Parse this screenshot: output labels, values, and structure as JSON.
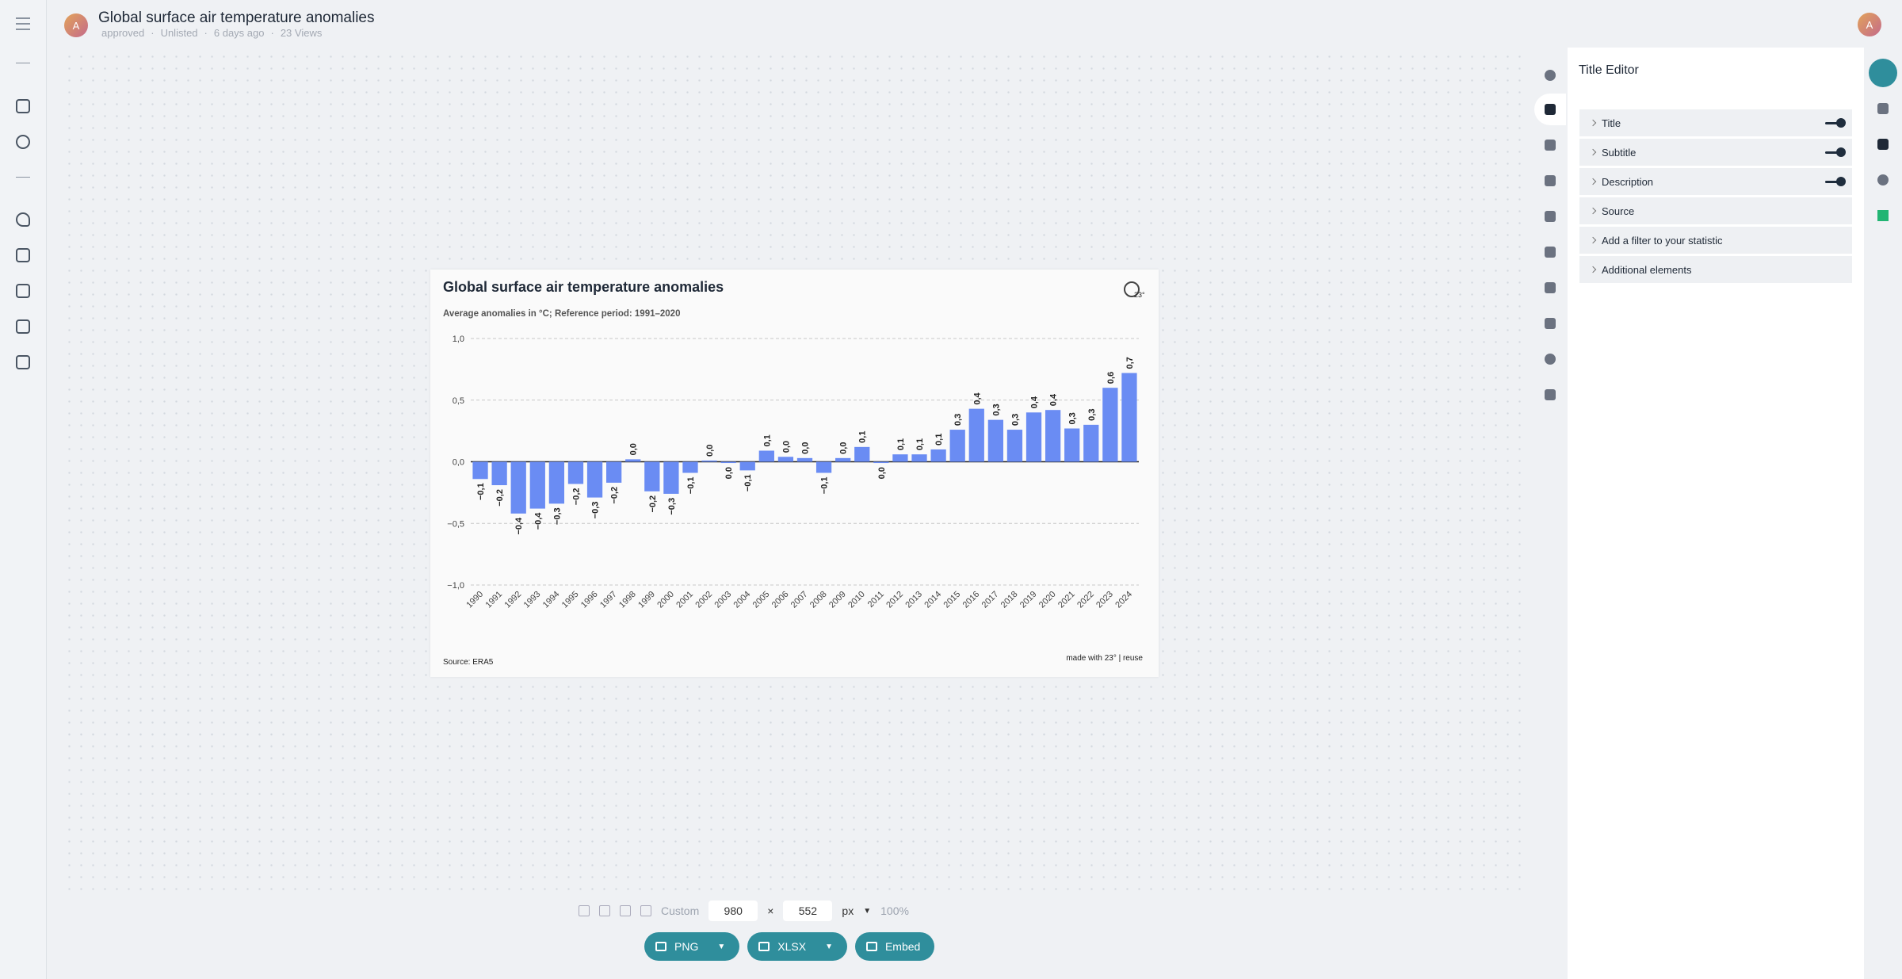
{
  "header": {
    "avatar": "A",
    "title": "Global surface air temperature anomalies",
    "meta": [
      "approved",
      "Unlisted",
      "6 days ago",
      "23 Views"
    ]
  },
  "user_avatar": "A",
  "chart_data": {
    "type": "bar",
    "title": "Global surface air temperature anomalies",
    "subtitle": "Average anomalies in °C; Reference period: 1991–2020",
    "logo": "23°",
    "source": "Source: ERA5",
    "credit": "made with 23° | reuse",
    "categories": [
      "1990",
      "1991",
      "1992",
      "1993",
      "1994",
      "1995",
      "1996",
      "1997",
      "1998",
      "1999",
      "2000",
      "2001",
      "2002",
      "2003",
      "2004",
      "2005",
      "2006",
      "2007",
      "2008",
      "2009",
      "2010",
      "2011",
      "2012",
      "2013",
      "2014",
      "2015",
      "2016",
      "2017",
      "2018",
      "2019",
      "2020",
      "2021",
      "2022",
      "2023",
      "2024"
    ],
    "values": [
      -0.14,
      -0.19,
      -0.42,
      -0.38,
      -0.34,
      -0.18,
      -0.29,
      -0.17,
      0.02,
      -0.24,
      -0.26,
      -0.09,
      0.01,
      -0.01,
      -0.07,
      0.09,
      0.04,
      0.03,
      -0.09,
      0.03,
      0.12,
      -0.01,
      0.06,
      0.06,
      0.1,
      0.26,
      0.43,
      0.34,
      0.26,
      0.4,
      0.42,
      0.27,
      0.3,
      0.6,
      0.72
    ],
    "value_labels": [
      "−0,1",
      "−0,2",
      "−0,4",
      "−0,4",
      "−0,3",
      "−0,2",
      "−0,3",
      "−0,2",
      "0,0",
      "−0,2",
      "−0,3",
      "−0,1",
      "0,0",
      "0,0",
      "−0,1",
      "0,1",
      "0,0",
      "0,0",
      "−0,1",
      "0,0",
      "0,1",
      "0,0",
      "0,1",
      "0,1",
      "0,1",
      "0,3",
      "0,4",
      "0,3",
      "0,3",
      "0,4",
      "0,4",
      "0,3",
      "0,3",
      "0,6",
      "0,7"
    ],
    "color": "#6a8cf3",
    "ylim": [
      -1,
      1
    ],
    "yticks": [
      {
        "value": 1,
        "label": "1,0"
      },
      {
        "value": 0.5,
        "label": "0,5"
      },
      {
        "value": 0,
        "label": "0,0"
      },
      {
        "value": -0.5,
        "label": "−0,5"
      },
      {
        "value": -1,
        "label": "−1,0"
      }
    ],
    "grid": true
  },
  "editor": {
    "title": "Title Editor",
    "items": [
      {
        "label": "Title",
        "toggle": true
      },
      {
        "label": "Subtitle",
        "toggle": true
      },
      {
        "label": "Description",
        "toggle": true
      },
      {
        "label": "Source"
      },
      {
        "label": "Add a filter to your statistic"
      },
      {
        "label": "Additional elements"
      }
    ]
  },
  "toolbar": {
    "preset": "Custom",
    "width": 980,
    "height": 552,
    "unit": "px",
    "zoom": "100%"
  },
  "export": [
    "PNG",
    "XLSX",
    "Embed"
  ]
}
